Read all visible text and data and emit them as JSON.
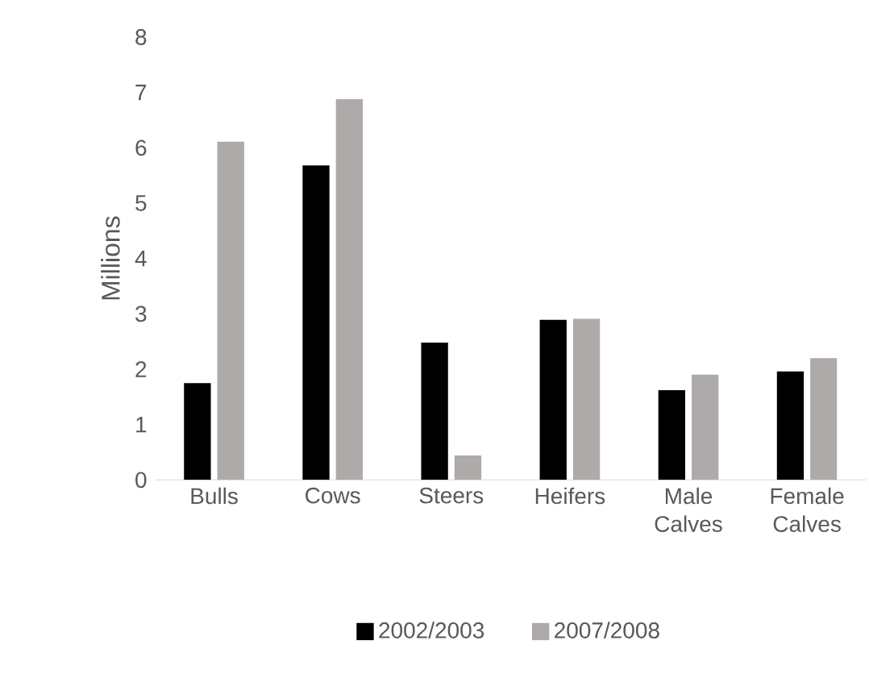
{
  "chart_data": {
    "type": "bar",
    "ylabel": "Millions",
    "categories": [
      "Bulls",
      "Cows",
      "Steers",
      "Heifers",
      "Male Calves",
      "Female Calves"
    ],
    "series": [
      {
        "name": "2002/2003",
        "color": "#000000",
        "values": [
          1.75,
          5.68,
          2.48,
          2.89,
          1.62,
          1.96
        ]
      },
      {
        "name": "2007/2008",
        "color": "#aeaaaa",
        "values": [
          6.11,
          6.88,
          0.44,
          2.91,
          1.9,
          2.2
        ]
      }
    ],
    "ylim": [
      0,
      8
    ],
    "yticks": [
      0,
      1,
      2,
      3,
      4,
      5,
      6,
      7,
      8
    ],
    "legend": "bottom"
  }
}
